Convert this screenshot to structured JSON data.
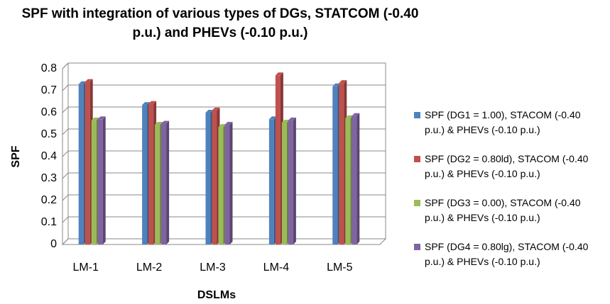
{
  "chart_data": {
    "type": "bar",
    "title": "SPF with integration of various types of DGs,  STATCOM (-0.40 p.u.) and PHEVs (-0.10 p.u.)",
    "x_label": "DSLMs",
    "y_label": "SPF",
    "categories": [
      "LM-1",
      "LM-2",
      "LM-3",
      "LM-4",
      "LM-5"
    ],
    "series": [
      {
        "name": "SPF (DG1 = 1.00), STACOM (-0.40 p.u.) & PHEVs (-0.10 p.u.)",
        "color": "#4f81bd",
        "values": [
          0.73,
          0.635,
          0.6,
          0.57,
          0.72
        ]
      },
      {
        "name": "SPF (DG2 = 0.80ld), STACOM (-0.40 p.u.) & PHEVs (-0.10 p.u.)",
        "color": "#c0504d",
        "values": [
          0.74,
          0.64,
          0.61,
          0.77,
          0.735
        ]
      },
      {
        "name": "SPF (DG3 = 0.00), STACOM (-0.40 p.u.) & PHEVs (-0.10 p.u.)",
        "color": "#9bbb59",
        "values": [
          0.565,
          0.545,
          0.535,
          0.555,
          0.575
        ]
      },
      {
        "name": "SPF (DG4 = 0.80lg), STACOM (-0.40 p.u.) & PHEVs (-0.10 p.u.)",
        "color": "#8064a2",
        "values": [
          0.57,
          0.55,
          0.545,
          0.565,
          0.585
        ]
      }
    ],
    "ylim": [
      0,
      0.8
    ],
    "yticks": [
      0,
      0.1,
      0.2,
      0.3,
      0.4,
      0.5,
      0.6,
      0.7,
      0.8
    ],
    "grid": true,
    "legend": "right"
  }
}
